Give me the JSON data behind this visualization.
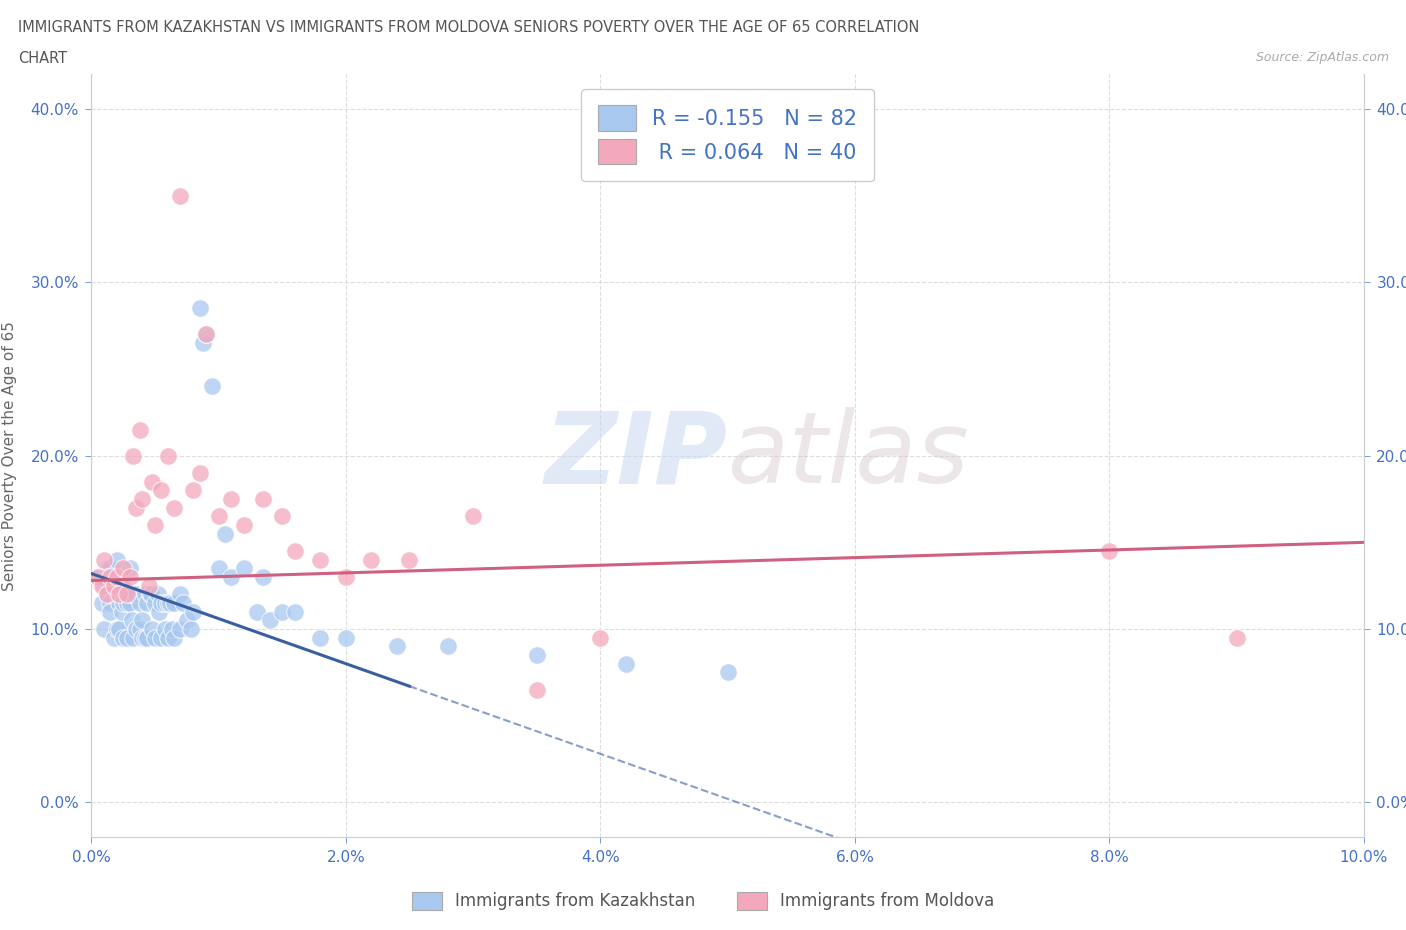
{
  "title_line1": "IMMIGRANTS FROM KAZAKHSTAN VS IMMIGRANTS FROM MOLDOVA SENIORS POVERTY OVER THE AGE OF 65 CORRELATION",
  "title_line2": "CHART",
  "source": "Source: ZipAtlas.com",
  "ylabel": "Seniors Poverty Over the Age of 65",
  "legend_kaz": "Immigrants from Kazakhstan",
  "legend_mol": "Immigrants from Moldova",
  "R_kaz": -0.155,
  "N_kaz": 82,
  "R_mol": 0.064,
  "N_mol": 40,
  "kaz_color": "#A8C8F0",
  "mol_color": "#F4A8BC",
  "kaz_line_color": "#3A5FA0",
  "mol_line_color": "#D06080",
  "xlim": [
    0.0,
    0.1
  ],
  "ylim": [
    -0.02,
    0.42
  ],
  "xticks": [
    0.0,
    0.02,
    0.04,
    0.06,
    0.08,
    0.1
  ],
  "yticks": [
    0.0,
    0.1,
    0.2,
    0.3,
    0.4
  ],
  "background_color": "#FFFFFF",
  "grid_color": "#DDDDDD",
  "kaz_scatter_x": [
    0.0005,
    0.0008,
    0.001,
    0.001,
    0.0012,
    0.0013,
    0.0015,
    0.0015,
    0.0015,
    0.0018,
    0.0018,
    0.002,
    0.002,
    0.002,
    0.0022,
    0.0022,
    0.0023,
    0.0024,
    0.0025,
    0.0025,
    0.0025,
    0.0028,
    0.0028,
    0.003,
    0.003,
    0.003,
    0.0032,
    0.0032,
    0.0033,
    0.0035,
    0.0035,
    0.0038,
    0.0038,
    0.004,
    0.004,
    0.0042,
    0.0042,
    0.0044,
    0.0044,
    0.0046,
    0.0047,
    0.0048,
    0.005,
    0.005,
    0.0052,
    0.0053,
    0.0055,
    0.0055,
    0.0058,
    0.0058,
    0.006,
    0.006,
    0.0062,
    0.0063,
    0.0065,
    0.0065,
    0.007,
    0.007,
    0.0072,
    0.0075,
    0.0078,
    0.008,
    0.0085,
    0.0088,
    0.009,
    0.0095,
    0.01,
    0.0105,
    0.011,
    0.012,
    0.013,
    0.0135,
    0.014,
    0.015,
    0.016,
    0.018,
    0.02,
    0.024,
    0.028,
    0.035,
    0.042,
    0.05
  ],
  "kaz_scatter_y": [
    0.13,
    0.115,
    0.125,
    0.1,
    0.12,
    0.135,
    0.115,
    0.135,
    0.11,
    0.125,
    0.095,
    0.12,
    0.1,
    0.14,
    0.1,
    0.115,
    0.125,
    0.11,
    0.095,
    0.125,
    0.115,
    0.095,
    0.115,
    0.115,
    0.12,
    0.135,
    0.12,
    0.105,
    0.095,
    0.1,
    0.12,
    0.115,
    0.1,
    0.095,
    0.105,
    0.12,
    0.095,
    0.095,
    0.115,
    0.12,
    0.12,
    0.1,
    0.095,
    0.115,
    0.12,
    0.11,
    0.095,
    0.115,
    0.1,
    0.115,
    0.095,
    0.115,
    0.115,
    0.1,
    0.115,
    0.095,
    0.1,
    0.12,
    0.115,
    0.105,
    0.1,
    0.11,
    0.285,
    0.265,
    0.27,
    0.24,
    0.135,
    0.155,
    0.13,
    0.135,
    0.11,
    0.13,
    0.105,
    0.11,
    0.11,
    0.095,
    0.095,
    0.09,
    0.09,
    0.085,
    0.08,
    0.075
  ],
  "mol_scatter_x": [
    0.0005,
    0.0008,
    0.001,
    0.0012,
    0.0015,
    0.0018,
    0.002,
    0.0022,
    0.0025,
    0.0028,
    0.003,
    0.0033,
    0.0035,
    0.0038,
    0.004,
    0.0045,
    0.0048,
    0.005,
    0.0055,
    0.006,
    0.0065,
    0.007,
    0.008,
    0.0085,
    0.009,
    0.01,
    0.011,
    0.012,
    0.0135,
    0.015,
    0.016,
    0.018,
    0.02,
    0.022,
    0.025,
    0.03,
    0.035,
    0.04,
    0.08,
    0.09
  ],
  "mol_scatter_y": [
    0.13,
    0.125,
    0.14,
    0.12,
    0.13,
    0.125,
    0.13,
    0.12,
    0.135,
    0.12,
    0.13,
    0.2,
    0.17,
    0.215,
    0.175,
    0.125,
    0.185,
    0.16,
    0.18,
    0.2,
    0.17,
    0.35,
    0.18,
    0.19,
    0.27,
    0.165,
    0.175,
    0.16,
    0.175,
    0.165,
    0.145,
    0.14,
    0.13,
    0.14,
    0.14,
    0.165,
    0.065,
    0.095,
    0.145,
    0.095
  ]
}
